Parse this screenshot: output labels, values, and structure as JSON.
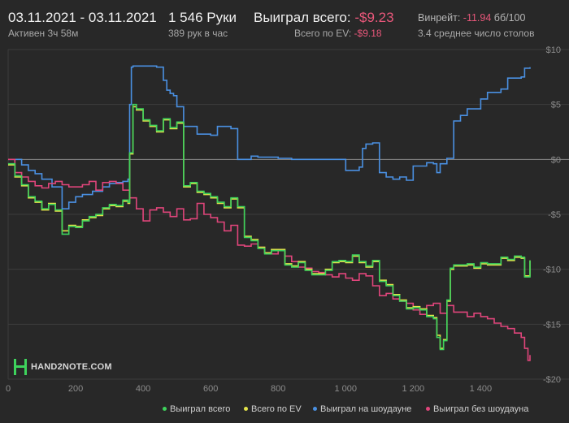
{
  "header": {
    "date_range": "03.11.2021 - 03.11.2021",
    "active": "Активен 3ч 58м",
    "hands": "1 546 Руки",
    "hands_per_hour": "389 рук в час",
    "won_total_label": "Выиграл всего:",
    "won_total_value": "-$9.23",
    "ev_label": "Всего по EV:",
    "ev_value": "-$9.18",
    "winrate_label": "Винрейт:",
    "winrate_value": "-11.94",
    "winrate_unit": "бб/100",
    "tables": "3.4 среднее число столов"
  },
  "logo": {
    "text": "HAND2NOTE.COM"
  },
  "colors": {
    "won_total": "#3ed35c",
    "ev": "#e3e34a",
    "showdown": "#4a90e2",
    "non_showdown": "#e0457b",
    "background": "#282828"
  },
  "chart_data": {
    "type": "line",
    "xlim": [
      0,
      1546
    ],
    "ylim": [
      -20,
      10
    ],
    "x_ticks": [
      0,
      200,
      400,
      600,
      800,
      1000,
      1200,
      1400
    ],
    "x_tick_labels": [
      "0",
      "200",
      "400",
      "600",
      "800",
      "1 000",
      "1 200",
      "1 400"
    ],
    "y_ticks": [
      10,
      5,
      0,
      -5,
      -10,
      -15,
      -20
    ],
    "y_tick_labels": [
      "$10",
      "$5",
      "$0",
      "-$5",
      "-$10",
      "-$15",
      "-$20"
    ],
    "grid": true,
    "legend_position": "bottom",
    "series": [
      {
        "name": "Выиграл на шоудауне",
        "color": "#4a90e2",
        "x": [
          0,
          20,
          40,
          60,
          80,
          100,
          130,
          160,
          180,
          200,
          220,
          250,
          280,
          300,
          320,
          340,
          355,
          360,
          365,
          370,
          400,
          440,
          460,
          470,
          480,
          490,
          500,
          520,
          560,
          600,
          620,
          640,
          660,
          680,
          700,
          720,
          740,
          760,
          800,
          840,
          880,
          920,
          960,
          990,
          1000,
          1020,
          1040,
          1050,
          1060,
          1070,
          1080,
          1100,
          1120,
          1140,
          1160,
          1180,
          1200,
          1220,
          1240,
          1260,
          1270,
          1280,
          1300,
          1320,
          1340,
          1360,
          1380,
          1400,
          1420,
          1440,
          1460,
          1480,
          1500,
          1520,
          1530,
          1546
        ],
        "y": [
          0,
          0,
          -0.5,
          -1,
          -1.3,
          -1.8,
          -2.5,
          -4.5,
          -3.9,
          -3.4,
          -3.2,
          -2.9,
          -2.5,
          -2.2,
          -2.1,
          -2.0,
          -1.8,
          5.0,
          8.4,
          8.5,
          8.5,
          8.4,
          7.2,
          6.3,
          6.0,
          5.8,
          4.8,
          3.0,
          2.3,
          2.2,
          3.0,
          3.0,
          2.8,
          0,
          0,
          0.3,
          0.2,
          0.2,
          0.1,
          0,
          0,
          0,
          0,
          0,
          -1,
          -1,
          -0.7,
          1,
          1.4,
          1.4,
          1.5,
          -1.2,
          -1.6,
          -1.8,
          -1.6,
          -1.9,
          -0.6,
          -0.6,
          -0.3,
          -0.4,
          -1.2,
          -0.4,
          0.1,
          3.5,
          4.0,
          4.6,
          4.6,
          5.5,
          6.1,
          6.1,
          6.4,
          7.4,
          7.4,
          7.5,
          8.3,
          8.4
        ]
      },
      {
        "name": "Выиграл без шоудауна",
        "color": "#e0457b",
        "x": [
          0,
          20,
          40,
          60,
          80,
          100,
          120,
          140,
          160,
          180,
          200,
          220,
          240,
          260,
          280,
          300,
          320,
          340,
          360,
          380,
          400,
          420,
          440,
          460,
          480,
          500,
          520,
          540,
          560,
          580,
          600,
          620,
          640,
          660,
          680,
          700,
          720,
          740,
          760,
          780,
          800,
          820,
          840,
          860,
          880,
          900,
          920,
          940,
          960,
          980,
          1000,
          1020,
          1040,
          1060,
          1080,
          1100,
          1120,
          1140,
          1160,
          1180,
          1200,
          1220,
          1240,
          1260,
          1280,
          1300,
          1320,
          1340,
          1360,
          1380,
          1400,
          1420,
          1440,
          1460,
          1480,
          1500,
          1520,
          1530,
          1540,
          1546
        ],
        "y": [
          0,
          -1.2,
          -1.6,
          -2.0,
          -2.4,
          -2.6,
          -2.2,
          -2.0,
          -2.3,
          -2.5,
          -2.5,
          -2.3,
          -2.0,
          -2.8,
          -2.1,
          -2.0,
          -2.2,
          -2.8,
          -3.5,
          -4.5,
          -5.6,
          -4.6,
          -4.4,
          -4.8,
          -5.2,
          -4.5,
          -5.5,
          -5.4,
          -4.0,
          -5.0,
          -5.3,
          -5.7,
          -6.5,
          -6.0,
          -7.8,
          -7.9,
          -7.7,
          -8.0,
          -8.5,
          -8.6,
          -8.3,
          -8.8,
          -9.3,
          -9.8,
          -9.9,
          -10.2,
          -10.3,
          -10.5,
          -10.7,
          -10.4,
          -10.8,
          -11.0,
          -10.4,
          -10.6,
          -11.5,
          -12.4,
          -12.2,
          -12.7,
          -12.9,
          -13.1,
          -13.7,
          -14.1,
          -13.3,
          -13.1,
          -14.0,
          -13.3,
          -13.9,
          -13.9,
          -14.3,
          -14.0,
          -14.3,
          -14.5,
          -14.9,
          -15.2,
          -15.4,
          -15.8,
          -16.2,
          -17.2,
          -18.3,
          -17.8
        ]
      },
      {
        "name": "Всего по EV",
        "color": "#e3e34a",
        "x": [
          0,
          20,
          40,
          60,
          80,
          100,
          120,
          140,
          160,
          180,
          200,
          220,
          240,
          260,
          280,
          300,
          320,
          340,
          355,
          360,
          370,
          380,
          400,
          420,
          440,
          460,
          480,
          500,
          520,
          540,
          560,
          580,
          600,
          620,
          640,
          660,
          680,
          700,
          720,
          740,
          760,
          780,
          800,
          820,
          840,
          860,
          880,
          900,
          920,
          940,
          960,
          980,
          1000,
          1020,
          1040,
          1060,
          1080,
          1100,
          1120,
          1140,
          1160,
          1180,
          1200,
          1220,
          1240,
          1260,
          1270,
          1280,
          1290,
          1300,
          1310,
          1320,
          1340,
          1360,
          1380,
          1400,
          1420,
          1440,
          1460,
          1480,
          1500,
          1520,
          1530,
          1546
        ],
        "y": [
          -0.5,
          -1.6,
          -2.4,
          -3.5,
          -3.9,
          -4.6,
          -4.0,
          -4.7,
          -6.5,
          -6.0,
          -6.1,
          -5.5,
          -5.3,
          -5.1,
          -4.5,
          -4.2,
          -4.3,
          -3.8,
          -4.0,
          0.5,
          4.8,
          4.5,
          3.5,
          3.0,
          2.5,
          3.6,
          2.8,
          3.3,
          -2.5,
          -2.2,
          -3.0,
          -3.2,
          -3.5,
          -4.0,
          -4.4,
          -3.6,
          -4.4,
          -7.0,
          -7.3,
          -8.0,
          -8.5,
          -8.2,
          -8.2,
          -9.5,
          -9.7,
          -9.3,
          -10.0,
          -10.4,
          -10.4,
          -10.0,
          -9.4,
          -9.3,
          -9.4,
          -8.8,
          -9.4,
          -9.8,
          -9.3,
          -11.0,
          -11.4,
          -12.3,
          -12.8,
          -13.5,
          -13.4,
          -13.6,
          -14.2,
          -14.4,
          -16.0,
          -17.2,
          -16.4,
          -12.9,
          -10.0,
          -9.7,
          -9.7,
          -9.6,
          -9.9,
          -9.5,
          -9.6,
          -9.6,
          -9.0,
          -9.2,
          -8.9,
          -9.0,
          -10.6,
          -9.2
        ]
      },
      {
        "name": "Выиграл всего",
        "color": "#3ed35c",
        "x": [
          0,
          20,
          40,
          60,
          80,
          100,
          120,
          140,
          160,
          180,
          200,
          220,
          240,
          260,
          280,
          300,
          320,
          340,
          355,
          360,
          370,
          380,
          400,
          420,
          440,
          460,
          480,
          500,
          520,
          540,
          560,
          580,
          600,
          620,
          640,
          660,
          680,
          700,
          720,
          740,
          760,
          780,
          800,
          820,
          840,
          860,
          880,
          900,
          920,
          940,
          960,
          980,
          1000,
          1020,
          1040,
          1060,
          1080,
          1100,
          1120,
          1140,
          1160,
          1180,
          1200,
          1220,
          1240,
          1260,
          1270,
          1280,
          1290,
          1300,
          1310,
          1320,
          1340,
          1360,
          1380,
          1400,
          1420,
          1440,
          1460,
          1480,
          1500,
          1520,
          1530,
          1546
        ],
        "y": [
          -0.4,
          -1.5,
          -2.3,
          -3.4,
          -3.8,
          -4.5,
          -4.1,
          -4.6,
          -6.8,
          -6.1,
          -6.2,
          -5.6,
          -5.2,
          -5.0,
          -4.4,
          -4.1,
          -4.2,
          -3.7,
          -3.9,
          0.6,
          5.0,
          4.6,
          3.6,
          3.1,
          2.6,
          3.7,
          2.9,
          3.4,
          -2.4,
          -2.1,
          -2.9,
          -3.1,
          -3.4,
          -3.9,
          -4.3,
          -3.5,
          -4.3,
          -7.1,
          -7.4,
          -8.1,
          -8.6,
          -8.3,
          -8.3,
          -9.6,
          -9.8,
          -9.4,
          -10.1,
          -10.5,
          -10.5,
          -10.1,
          -9.3,
          -9.2,
          -9.3,
          -8.7,
          -9.3,
          -9.7,
          -9.2,
          -11.1,
          -11.5,
          -12.4,
          -12.9,
          -13.6,
          -13.5,
          -13.7,
          -14.3,
          -14.5,
          -16.2,
          -17.3,
          -16.5,
          -12.8,
          -9.9,
          -9.6,
          -9.6,
          -9.5,
          -9.8,
          -9.4,
          -9.5,
          -9.5,
          -8.9,
          -9.1,
          -8.8,
          -8.9,
          -10.7,
          -9.2
        ]
      }
    ]
  },
  "legend": [
    {
      "label": "Выиграл всего",
      "color": "#3ed35c"
    },
    {
      "label": "Всего по EV",
      "color": "#e3e34a"
    },
    {
      "label": "Выиграл на шоудауне",
      "color": "#4a90e2"
    },
    {
      "label": "Выиграл без шоудауна",
      "color": "#e0457b"
    }
  ]
}
